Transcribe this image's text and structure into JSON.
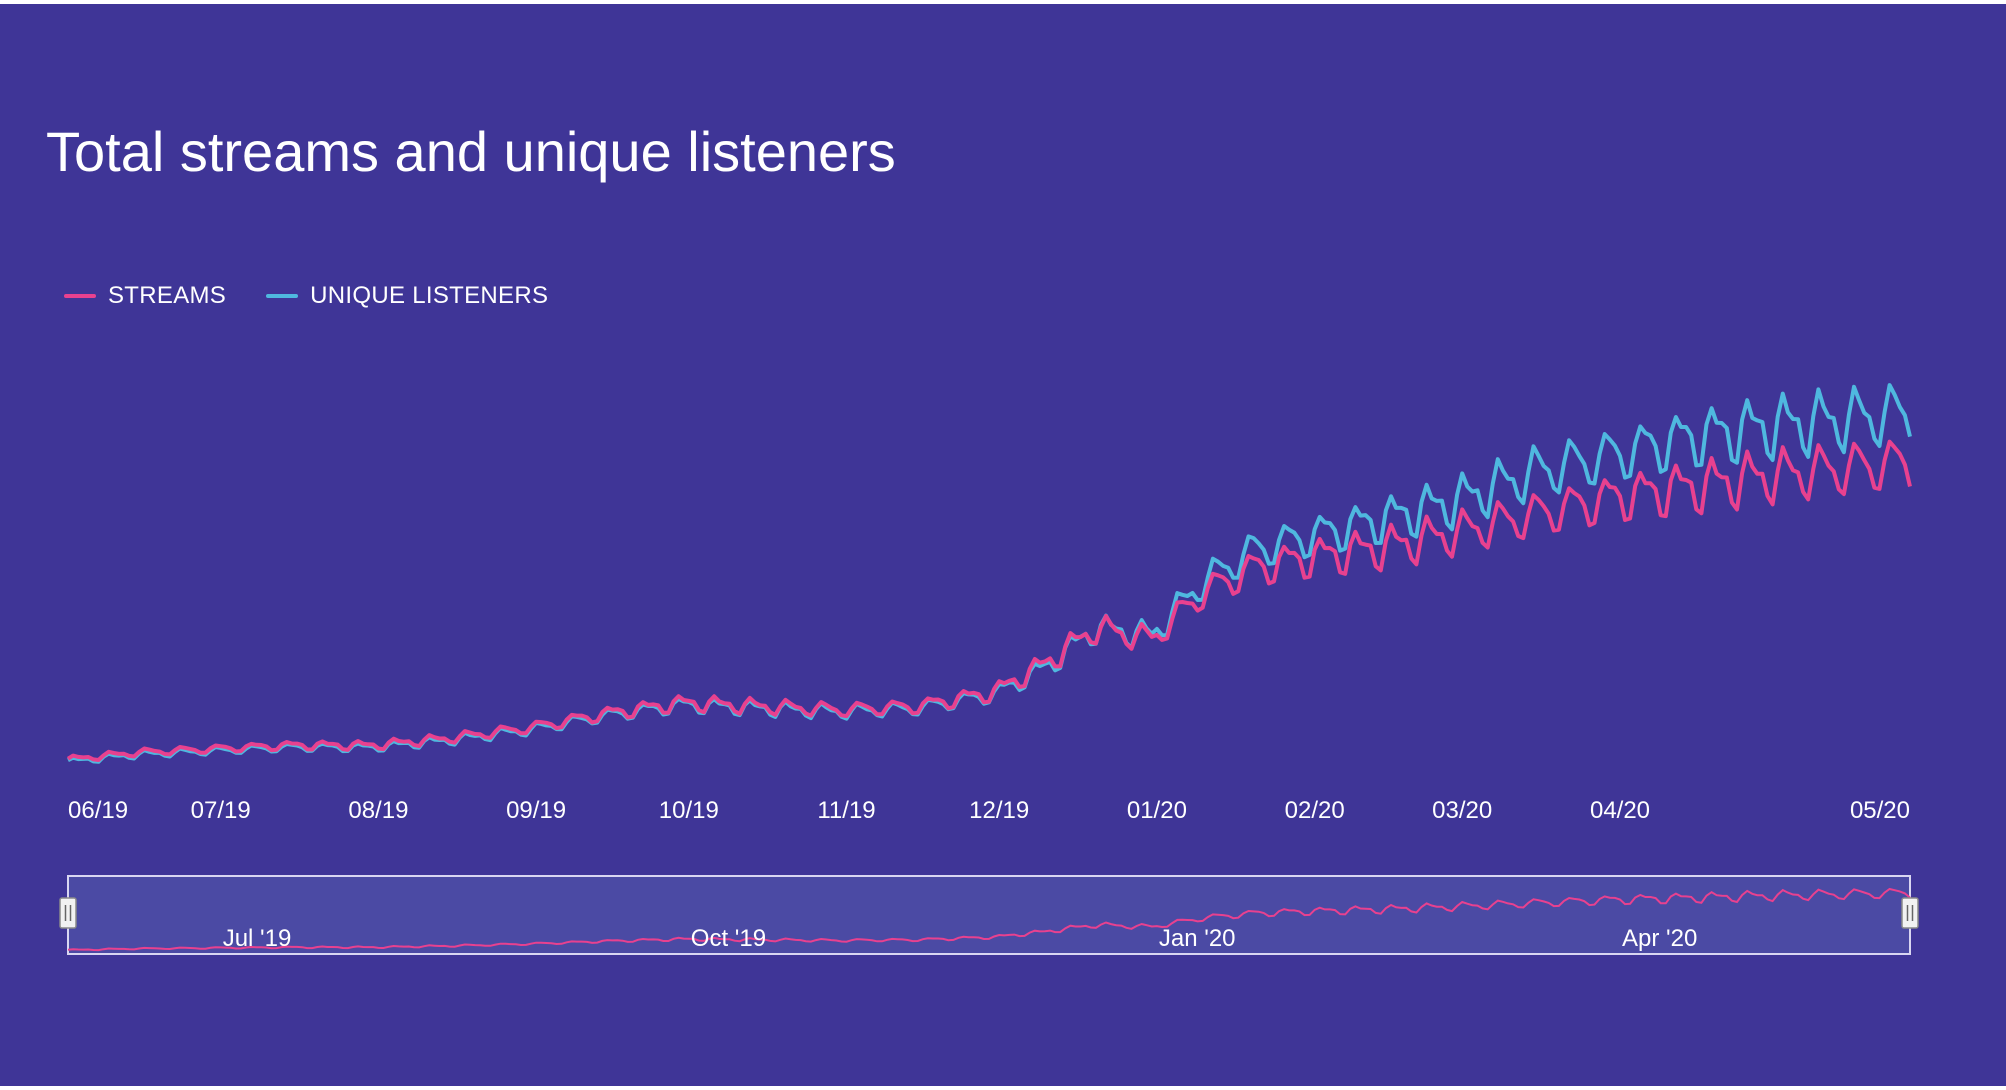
{
  "colors": {
    "background": "#3f3597",
    "streams": "#e8418f",
    "listeners": "#4fb8df",
    "navigator_fill": "#4b4aa4",
    "text": "#ffffff"
  },
  "chart_data": {
    "type": "line",
    "title": "Total streams and unique listeners",
    "xlabel": "",
    "ylabel": "",
    "x_range": [
      "2019-06-01",
      "2020-05-28"
    ],
    "x_tick_labels": [
      {
        "date": "2019-06-01",
        "label": "06/19"
      },
      {
        "date": "2019-07-01",
        "label": "07/19"
      },
      {
        "date": "2019-08-01",
        "label": "08/19"
      },
      {
        "date": "2019-09-01",
        "label": "09/19"
      },
      {
        "date": "2019-10-01",
        "label": "10/19"
      },
      {
        "date": "2019-11-01",
        "label": "11/19"
      },
      {
        "date": "2019-12-01",
        "label": "12/19"
      },
      {
        "date": "2020-01-01",
        "label": "01/20"
      },
      {
        "date": "2020-02-01",
        "label": "02/20"
      },
      {
        "date": "2020-03-01",
        "label": "03/20"
      },
      {
        "date": "2020-04-01",
        "label": "04/20"
      },
      {
        "date": "2020-05-01",
        "label": "05/20"
      }
    ],
    "grid": false,
    "legend_position": "top-left",
    "series": [
      {
        "name": "STREAMS",
        "color": "#e8418f",
        "points": [
          [
            "2019-06-01",
            3
          ],
          [
            "2019-06-15",
            5
          ],
          [
            "2019-06-30",
            6
          ],
          [
            "2019-07-15",
            7
          ],
          [
            "2019-07-31",
            7
          ],
          [
            "2019-08-15",
            9
          ],
          [
            "2019-08-31",
            12
          ],
          [
            "2019-09-15",
            16
          ],
          [
            "2019-09-30",
            19
          ],
          [
            "2019-10-15",
            18
          ],
          [
            "2019-10-31",
            17
          ],
          [
            "2019-11-15",
            18
          ],
          [
            "2019-11-30",
            22
          ],
          [
            "2019-12-10",
            30
          ],
          [
            "2019-12-20",
            40
          ],
          [
            "2019-12-31",
            37
          ],
          [
            "2020-01-10",
            50
          ],
          [
            "2020-01-20",
            57
          ],
          [
            "2020-01-31",
            60
          ],
          [
            "2020-02-15",
            63
          ],
          [
            "2020-02-29",
            67
          ],
          [
            "2020-03-15",
            72
          ],
          [
            "2020-03-31",
            77
          ],
          [
            "2020-04-15",
            80
          ],
          [
            "2020-04-30",
            83
          ],
          [
            "2020-05-15",
            85
          ],
          [
            "2020-05-28",
            87
          ]
        ]
      },
      {
        "name": "UNIQUE LISTENERS",
        "color": "#4fb8df",
        "points": [
          [
            "2019-06-01",
            2.5
          ],
          [
            "2019-06-15",
            4.5
          ],
          [
            "2019-06-30",
            5.5
          ],
          [
            "2019-07-15",
            6.5
          ],
          [
            "2019-07-31",
            6.5
          ],
          [
            "2019-08-15",
            8.5
          ],
          [
            "2019-08-31",
            11.5
          ],
          [
            "2019-09-15",
            15.5
          ],
          [
            "2019-09-30",
            18.5
          ],
          [
            "2019-10-15",
            17.5
          ],
          [
            "2019-10-31",
            16.5
          ],
          [
            "2019-11-15",
            17.5
          ],
          [
            "2019-11-30",
            21.5
          ],
          [
            "2019-12-10",
            29
          ],
          [
            "2019-12-20",
            40
          ],
          [
            "2019-12-31",
            38
          ],
          [
            "2020-01-10",
            53
          ],
          [
            "2020-01-20",
            62
          ],
          [
            "2020-01-31",
            66
          ],
          [
            "2020-02-15",
            71
          ],
          [
            "2020-02-29",
            76
          ],
          [
            "2020-03-15",
            84
          ],
          [
            "2020-03-31",
            89
          ],
          [
            "2020-04-15",
            94
          ],
          [
            "2020-04-30",
            97
          ],
          [
            "2020-05-15",
            99
          ],
          [
            "2020-05-28",
            101
          ]
        ]
      }
    ],
    "navigator": {
      "labels": [
        {
          "date": "2019-07-01",
          "label": "Jul '19"
        },
        {
          "date": "2019-10-01",
          "label": "Oct '19"
        },
        {
          "date": "2020-01-01",
          "label": "Jan '20"
        },
        {
          "date": "2020-04-01",
          "label": "Apr '20"
        }
      ]
    }
  }
}
